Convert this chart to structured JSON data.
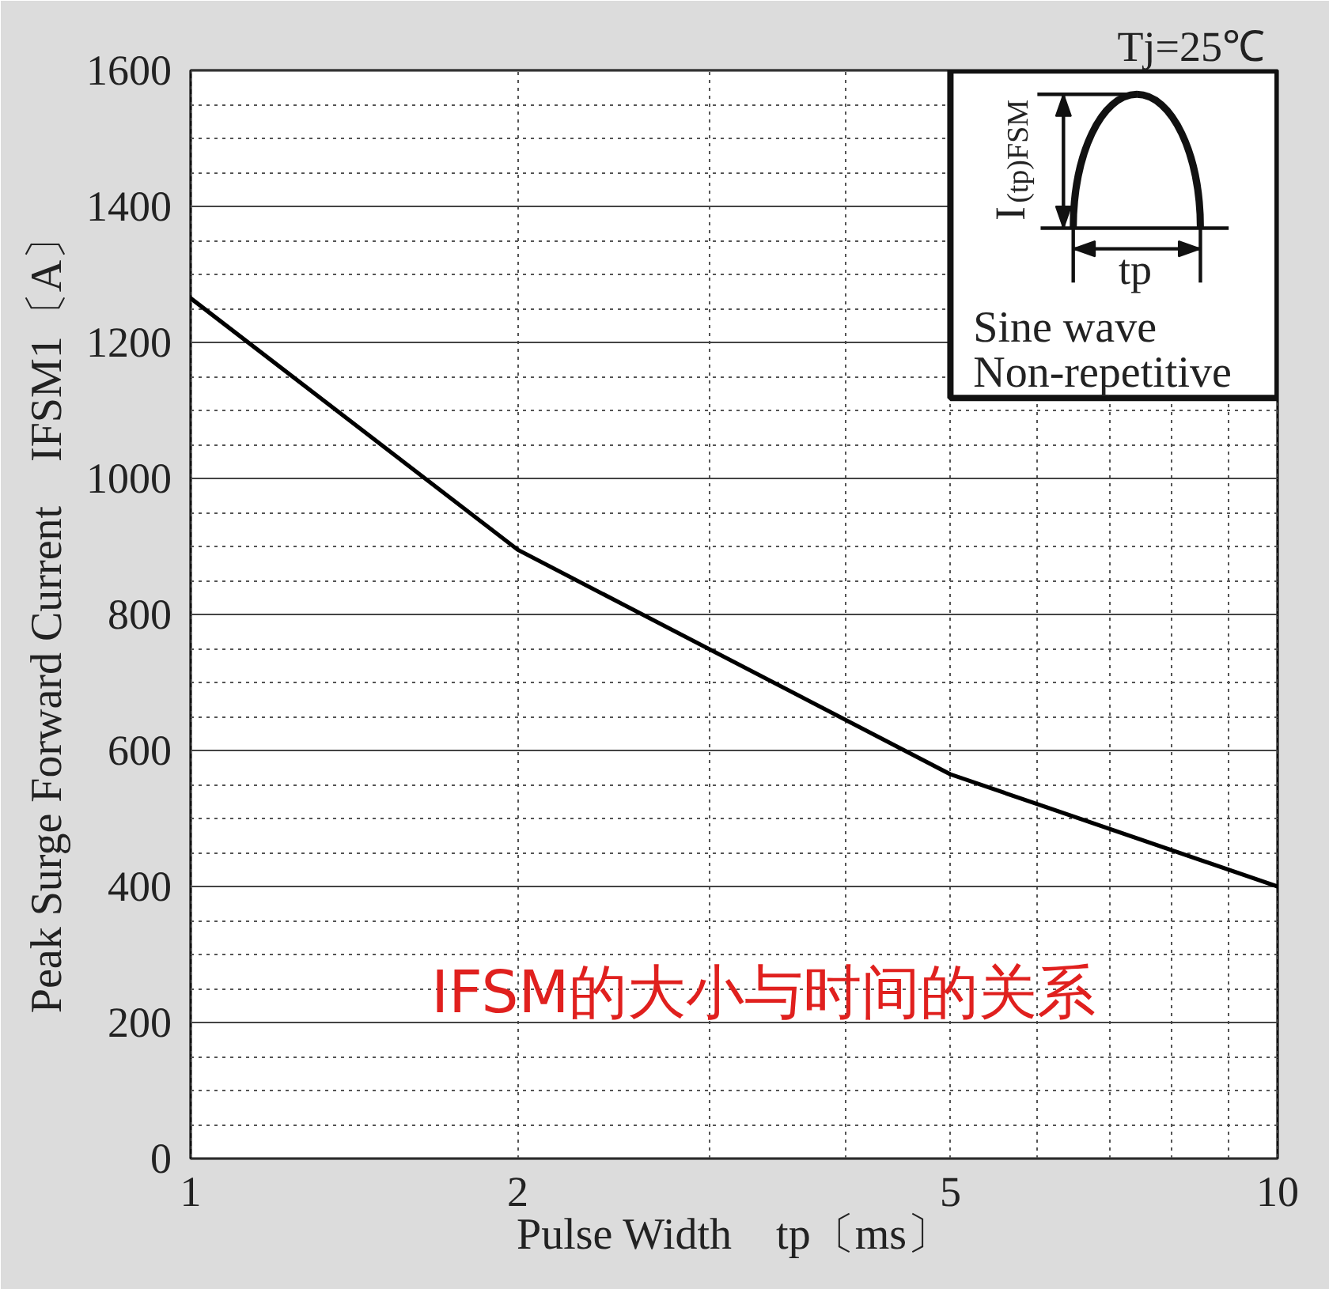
{
  "chart_data": {
    "type": "line",
    "xlabel": "Pulse Width　tp〔ms〕",
    "ylabel": "Peak Surge Forward Current　IFSM1〔A〕",
    "annotations": [
      "Tj=25℃",
      "I$_{(tp)FSM}$",
      "tp",
      "Sine wave",
      "Non-repetitive",
      "IFSM的大小与时间的关系"
    ],
    "log": "x",
    "x": [
      1,
      2,
      5,
      10
    ],
    "series": [
      {
        "color": "#000000",
        "values": [
          1265,
          895,
          565,
          400
        ]
      }
    ],
    "xlim": [
      1,
      10
    ],
    "ylim": [
      0,
      1600
    ],
    "xticks": [
      1,
      2,
      {
        "value": 3,
        "label": null
      },
      {
        "value": 4,
        "label": null
      },
      5,
      {
        "value": 6,
        "label": null
      },
      {
        "value": 7,
        "label": null
      },
      {
        "value": 8,
        "label": null
      },
      {
        "value": 9,
        "label": null
      },
      10
    ],
    "yticks": [
      0,
      {
        "value": 50,
        "label": null
      },
      {
        "value": 100,
        "label": null
      },
      {
        "value": 150,
        "label": null
      },
      200,
      {
        "value": 250,
        "label": null
      },
      {
        "value": 300,
        "label": null
      },
      {
        "value": 350,
        "label": null
      },
      400,
      {
        "value": 450,
        "label": null
      },
      {
        "value": 500,
        "label": null
      },
      {
        "value": 550,
        "label": null
      },
      600,
      {
        "value": 650,
        "label": null
      },
      {
        "value": 700,
        "label": null
      },
      {
        "value": 750,
        "label": null
      },
      800,
      {
        "value": 850,
        "label": null
      },
      {
        "value": 900,
        "label": null
      },
      {
        "value": 950,
        "label": null
      },
      1000,
      {
        "value": 1050,
        "label": null
      },
      {
        "value": 1100,
        "label": null
      },
      {
        "value": 1150,
        "label": null
      },
      1200,
      {
        "value": 1250,
        "label": null
      },
      {
        "value": 1300,
        "label": null
      },
      {
        "value": 1350,
        "label": null
      },
      1400,
      {
        "value": 1450,
        "label": null
      },
      {
        "value": 1500,
        "label": null
      },
      {
        "value": 1550,
        "label": null
      },
      1600
    ],
    "grid": true
  }
}
